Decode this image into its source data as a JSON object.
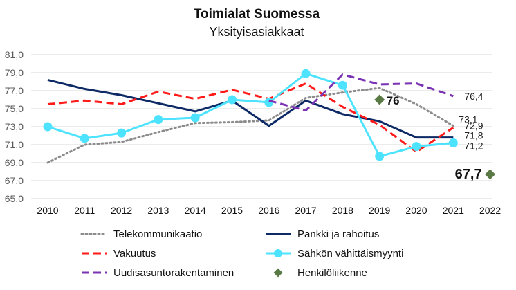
{
  "chart_data": {
    "type": "line",
    "title": "Toimialat Suomessa",
    "subtitle": "Yksityisasiakkaat",
    "x": [
      "2010",
      "2011",
      "2012",
      "2013",
      "2014",
      "2015",
      "2016",
      "2017",
      "2018",
      "2019",
      "2020",
      "2021",
      "2022"
    ],
    "y_ticks": [
      "65,0",
      "67,0",
      "69,0",
      "71,0",
      "73,0",
      "75,0",
      "77,0",
      "79,0",
      "81,0"
    ],
    "ylim": [
      65,
      81
    ],
    "grid": true,
    "legend_position": "bottom",
    "series": [
      {
        "name": "Telekommunikaatio",
        "color": "#8c8c8c",
        "dash": "dot",
        "values": [
          69.0,
          71.0,
          71.3,
          72.4,
          73.4,
          73.5,
          73.7,
          76.2,
          76.8,
          77.3,
          75.5,
          73.1,
          null
        ]
      },
      {
        "name": "Pankki ja rahoitus",
        "color": "#0d2a66",
        "dash": "solid",
        "values": [
          78.2,
          77.2,
          76.5,
          75.6,
          74.7,
          75.9,
          73.1,
          75.9,
          74.4,
          73.6,
          71.8,
          71.8,
          null
        ]
      },
      {
        "name": "Vakuutus",
        "color": "#ff1a1a",
        "dash": "dash",
        "values": [
          75.5,
          75.9,
          75.5,
          76.9,
          76.1,
          77.1,
          76.1,
          77.8,
          75.2,
          73.2,
          70.2,
          72.9,
          null
        ]
      },
      {
        "name": "Sähkön vähittäismyynti",
        "color": "#4de3ff",
        "dash": "solid",
        "marker": "circle",
        "values": [
          73.0,
          71.7,
          72.3,
          73.8,
          74.0,
          76.0,
          75.7,
          78.9,
          77.6,
          69.7,
          70.8,
          71.2,
          null
        ]
      },
      {
        "name": "Uudisasuntorakentaminen",
        "color": "#7a33b3",
        "dash": "dash",
        "values": [
          null,
          null,
          null,
          null,
          null,
          null,
          75.9,
          74.8,
          78.8,
          77.7,
          77.8,
          76.4,
          null
        ]
      },
      {
        "name": "Henkilöliikenne",
        "color": "#5a7a45",
        "dash": "none",
        "marker": "diamond",
        "values": [
          null,
          null,
          null,
          null,
          null,
          null,
          null,
          null,
          null,
          76.0,
          null,
          null,
          67.7
        ]
      }
    ],
    "data_labels": [
      {
        "text": "76,4",
        "series": 4,
        "x": "2021"
      },
      {
        "text": "73,1",
        "series": 0,
        "x": "2021"
      },
      {
        "text": "72,9",
        "series": 2,
        "x": "2021"
      },
      {
        "text": "71,8",
        "series": 1,
        "x": "2021"
      },
      {
        "text": "71,2",
        "series": 3,
        "x": "2021"
      },
      {
        "text": "76",
        "series": 5,
        "x": "2019"
      },
      {
        "text": "67,7",
        "series": 5,
        "x": "2022"
      }
    ]
  }
}
